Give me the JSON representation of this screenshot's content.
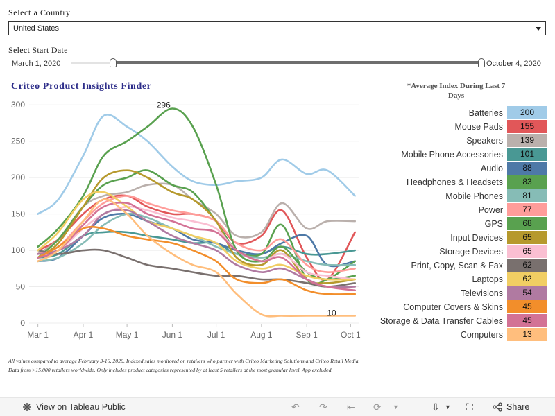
{
  "filters": {
    "country_label": "Select a Country",
    "country_value": "United States",
    "date_label": "Select Start Date",
    "start_date": "March 1, 2020",
    "end_date": "October 4, 2020"
  },
  "chart_title": "Criteo Product Insights Finder",
  "legend_title": "*Average Index During Last 7 Days",
  "footnote": "All values compared to average February 3-16, 2020. Indexed sales monitored on retailers who partner with Criteo Marketing Solutions and Criteo Retail Media. Data from >15,000 retailers worldwide. Only includes product categories represented by at least 5 retailers at the most granular level. App excluded.",
  "toolbar": {
    "view_label": "View on Tableau Public",
    "share_label": "Share"
  },
  "chart_data": {
    "type": "line",
    "title": "Criteo Product Insights Finder",
    "xlabel": "",
    "ylabel": "",
    "x_ticks": [
      "Mar 1",
      "Apr 1",
      "May 1",
      "Jun 1",
      "Jul 1",
      "Aug 1",
      "Sep 1",
      "Oct 1"
    ],
    "y_ticks": [
      0,
      50,
      100,
      150,
      200,
      250,
      300
    ],
    "ylim": [
      0,
      305
    ],
    "xlim": [
      "2020-02-24",
      "2020-10-07"
    ],
    "grid": "horizontal",
    "annotations": [
      {
        "text": "296",
        "x": "2020-05-26",
        "y": 296
      },
      {
        "text": "10",
        "x": "2020-09-18",
        "y": 10
      }
    ],
    "x": [
      "2020-03-01",
      "2020-03-15",
      "2020-04-01",
      "2020-04-15",
      "2020-05-01",
      "2020-05-15",
      "2020-06-01",
      "2020-06-15",
      "2020-07-01",
      "2020-07-15",
      "2020-08-01",
      "2020-08-15",
      "2020-09-01",
      "2020-09-15",
      "2020-10-04"
    ],
    "series": [
      {
        "name": "Batteries",
        "color": "#a0cbe8",
        "avg": "200",
        "values": [
          150,
          170,
          230,
          285,
          270,
          250,
          215,
          195,
          190,
          195,
          200,
          225,
          205,
          210,
          175
        ]
      },
      {
        "name": "Mouse Pads",
        "color": "#e15759",
        "avg": "155",
        "values": [
          100,
          115,
          150,
          170,
          175,
          160,
          150,
          150,
          140,
          110,
          120,
          155,
          90,
          60,
          125
        ]
      },
      {
        "name": "Speakers",
        "color": "#bab0ac",
        "avg": "139",
        "values": [
          95,
          115,
          160,
          175,
          180,
          190,
          190,
          170,
          150,
          120,
          125,
          165,
          130,
          140,
          140
        ]
      },
      {
        "name": "Mobile Phone Accessories",
        "color": "#499894",
        "avg": "101",
        "values": [
          90,
          95,
          120,
          125,
          125,
          120,
          115,
          110,
          110,
          95,
          95,
          105,
          95,
          95,
          100
        ]
      },
      {
        "name": "Audio",
        "color": "#4e79a7",
        "avg": "88",
        "values": [
          85,
          90,
          120,
          145,
          150,
          140,
          130,
          115,
          110,
          100,
          95,
          110,
          120,
          80,
          85
        ]
      },
      {
        "name": "Headphones & Headsets",
        "color": "#59a14f",
        "avg": "83",
        "values": [
          90,
          115,
          160,
          190,
          200,
          210,
          190,
          180,
          140,
          100,
          95,
          135,
          60,
          60,
          85
        ]
      },
      {
        "name": "Mobile Phones",
        "color": "#86bcb6",
        "avg": "81",
        "values": [
          85,
          90,
          110,
          135,
          150,
          145,
          130,
          120,
          105,
          95,
          90,
          95,
          85,
          80,
          80
        ]
      },
      {
        "name": "Power",
        "color": "#ff9d9a",
        "avg": "77",
        "values": [
          95,
          105,
          140,
          165,
          175,
          165,
          155,
          150,
          140,
          110,
          100,
          115,
          80,
          70,
          75
        ]
      },
      {
        "name": "GPS",
        "color": "#59a14f",
        "avg": "68",
        "values": [
          105,
          130,
          175,
          230,
          250,
          270,
          295,
          270,
          190,
          100,
          85,
          105,
          70,
          60,
          65
        ]
      },
      {
        "name": "Input Devices",
        "color": "#b6992d",
        "avg": "65",
        "values": [
          90,
          110,
          160,
          200,
          210,
          200,
          180,
          170,
          140,
          90,
          80,
          100,
          60,
          55,
          60
        ]
      },
      {
        "name": "Storage Devices",
        "color": "#fabfd2",
        "avg": "65",
        "values": [
          95,
          100,
          130,
          150,
          160,
          155,
          145,
          140,
          130,
          100,
          85,
          95,
          70,
          65,
          60
        ]
      },
      {
        "name": "Print, Copy, Scan & Fax",
        "color": "#79706e",
        "avg": "62",
        "values": [
          100,
          95,
          100,
          100,
          90,
          80,
          75,
          70,
          65,
          65,
          60,
          60,
          55,
          50,
          55
        ]
      },
      {
        "name": "Laptops",
        "color": "#f1ce63",
        "avg": "62",
        "values": [
          100,
          125,
          170,
          180,
          160,
          140,
          130,
          120,
          110,
          85,
          75,
          80,
          65,
          60,
          60
        ]
      },
      {
        "name": "Televisions",
        "color": "#b07aa1",
        "avg": "54",
        "values": [
          95,
          100,
          120,
          150,
          155,
          140,
          120,
          110,
          100,
          80,
          70,
          75,
          60,
          50,
          50
        ]
      },
      {
        "name": "Computer Covers & Skins",
        "color": "#f28e2b",
        "avg": "45",
        "values": [
          90,
          105,
          130,
          130,
          120,
          115,
          110,
          100,
          85,
          60,
          55,
          60,
          45,
          40,
          40
        ]
      },
      {
        "name": "Storage & Data Transfer Cables",
        "color": "#d37295",
        "avg": "45",
        "values": [
          90,
          100,
          135,
          160,
          165,
          150,
          140,
          130,
          125,
          100,
          85,
          90,
          60,
          50,
          45
        ]
      },
      {
        "name": "Computers",
        "color": "#ffbe7d",
        "avg": "13",
        "values": [
          85,
          100,
          140,
          170,
          150,
          120,
          95,
          80,
          70,
          40,
          12,
          10,
          10,
          10,
          10
        ]
      }
    ]
  }
}
